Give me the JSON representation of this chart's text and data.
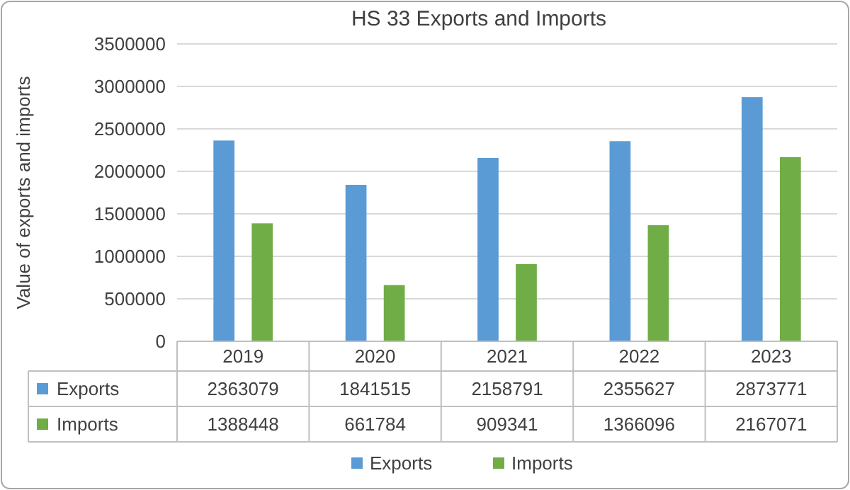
{
  "chart_data": {
    "type": "bar",
    "title": "HS 33 Exports and Imports",
    "ylabel": "Value of exports and imports",
    "categories": [
      "2019",
      "2020",
      "2021",
      "2022",
      "2023"
    ],
    "series": [
      {
        "name": "Exports",
        "color": "#5b9bd5",
        "values": [
          2363079,
          1841515,
          2158791,
          2355627,
          2873771
        ]
      },
      {
        "name": "Imports",
        "color": "#70ad47",
        "values": [
          1388448,
          661784,
          909341,
          1366096,
          2167071
        ]
      }
    ],
    "ylim": [
      0,
      3500000
    ],
    "yticks": [
      0,
      500000,
      1000000,
      1500000,
      2000000,
      2500000,
      3000000,
      3500000
    ],
    "grid": "y",
    "legend": "bottom",
    "data_labels": true
  }
}
